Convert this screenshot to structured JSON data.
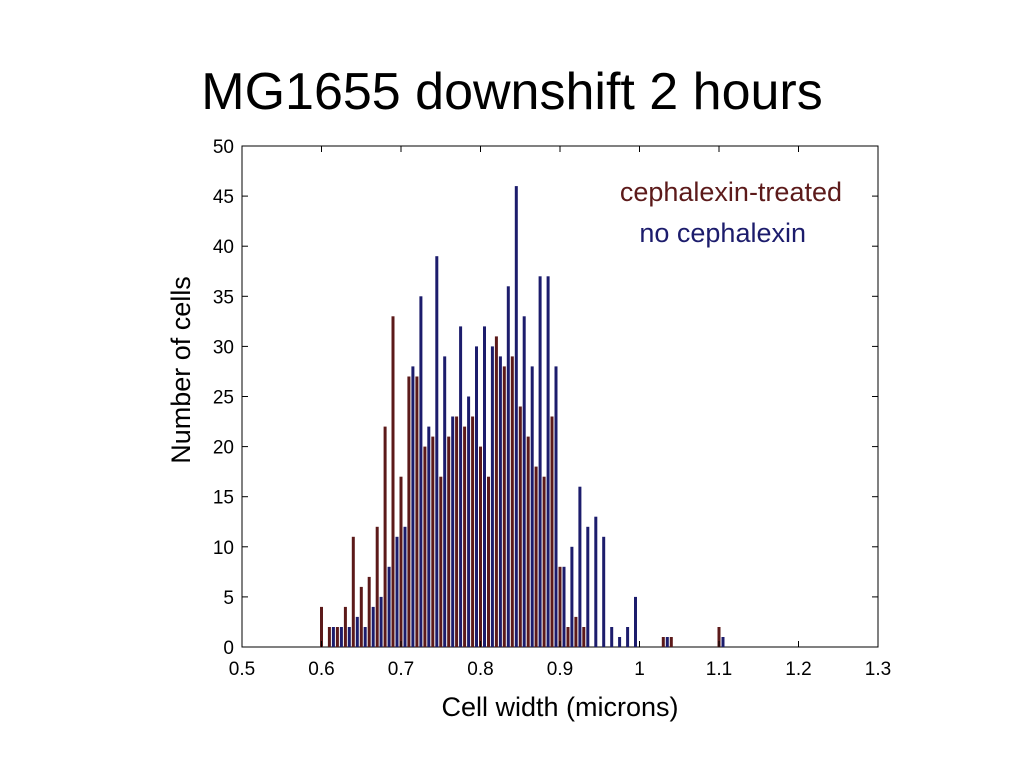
{
  "slide": {
    "title": "MG1655 downshift 2 hours"
  },
  "chart_data": {
    "type": "bar",
    "title": "MG1655 downshift 2 hours",
    "xlabel": "Cell width (microns)",
    "ylabel": "Number of cells",
    "xlim": [
      0.5,
      1.3
    ],
    "ylim": [
      0,
      50
    ],
    "xticks": [
      "0.5",
      "0.6",
      "0.7",
      "0.8",
      "0.9",
      "1",
      "1.1",
      "1.2",
      "1.3"
    ],
    "yticks": [
      "0",
      "5",
      "10",
      "15",
      "20",
      "25",
      "30",
      "35",
      "40",
      "45",
      "50"
    ],
    "grid": false,
    "legend_placement": "top-right",
    "series": [
      {
        "name": "cephalexin-treated",
        "color": "#5c1a1a",
        "x": [
          0.6,
          0.61,
          0.62,
          0.63,
          0.64,
          0.65,
          0.66,
          0.67,
          0.68,
          0.69,
          0.7,
          0.71,
          0.72,
          0.73,
          0.74,
          0.75,
          0.76,
          0.77,
          0.78,
          0.79,
          0.8,
          0.81,
          0.82,
          0.83,
          0.84,
          0.85,
          0.86,
          0.87,
          0.88,
          0.89,
          0.9,
          0.91,
          0.92,
          0.93,
          0.94,
          1.03,
          1.04,
          1.1
        ],
        "values": [
          4,
          2,
          2,
          4,
          11,
          6,
          7,
          12,
          22,
          33,
          17,
          27,
          27,
          20,
          21,
          17,
          21,
          23,
          22,
          23,
          20,
          17,
          31,
          28,
          29,
          24,
          21,
          18,
          17,
          23,
          8,
          2,
          3,
          2,
          0,
          1,
          1,
          2
        ]
      },
      {
        "name": "no cephalexin",
        "color": "#1c1c6c",
        "x": [
          0.615,
          0.625,
          0.635,
          0.645,
          0.655,
          0.665,
          0.675,
          0.685,
          0.695,
          0.705,
          0.715,
          0.725,
          0.735,
          0.745,
          0.755,
          0.765,
          0.775,
          0.785,
          0.795,
          0.805,
          0.815,
          0.825,
          0.835,
          0.845,
          0.855,
          0.865,
          0.875,
          0.885,
          0.895,
          0.905,
          0.915,
          0.925,
          0.935,
          0.945,
          0.955,
          0.965,
          0.975,
          0.985,
          0.995,
          1.035,
          1.105
        ],
        "values": [
          2,
          2,
          2,
          3,
          2,
          4,
          5,
          8,
          11,
          12,
          28,
          35,
          22,
          39,
          29,
          23,
          32,
          25,
          30,
          32,
          30,
          29,
          36,
          46,
          33,
          28,
          37,
          37,
          28,
          8,
          10,
          16,
          12,
          13,
          11,
          2,
          1,
          2,
          5,
          1,
          1
        ]
      }
    ]
  }
}
